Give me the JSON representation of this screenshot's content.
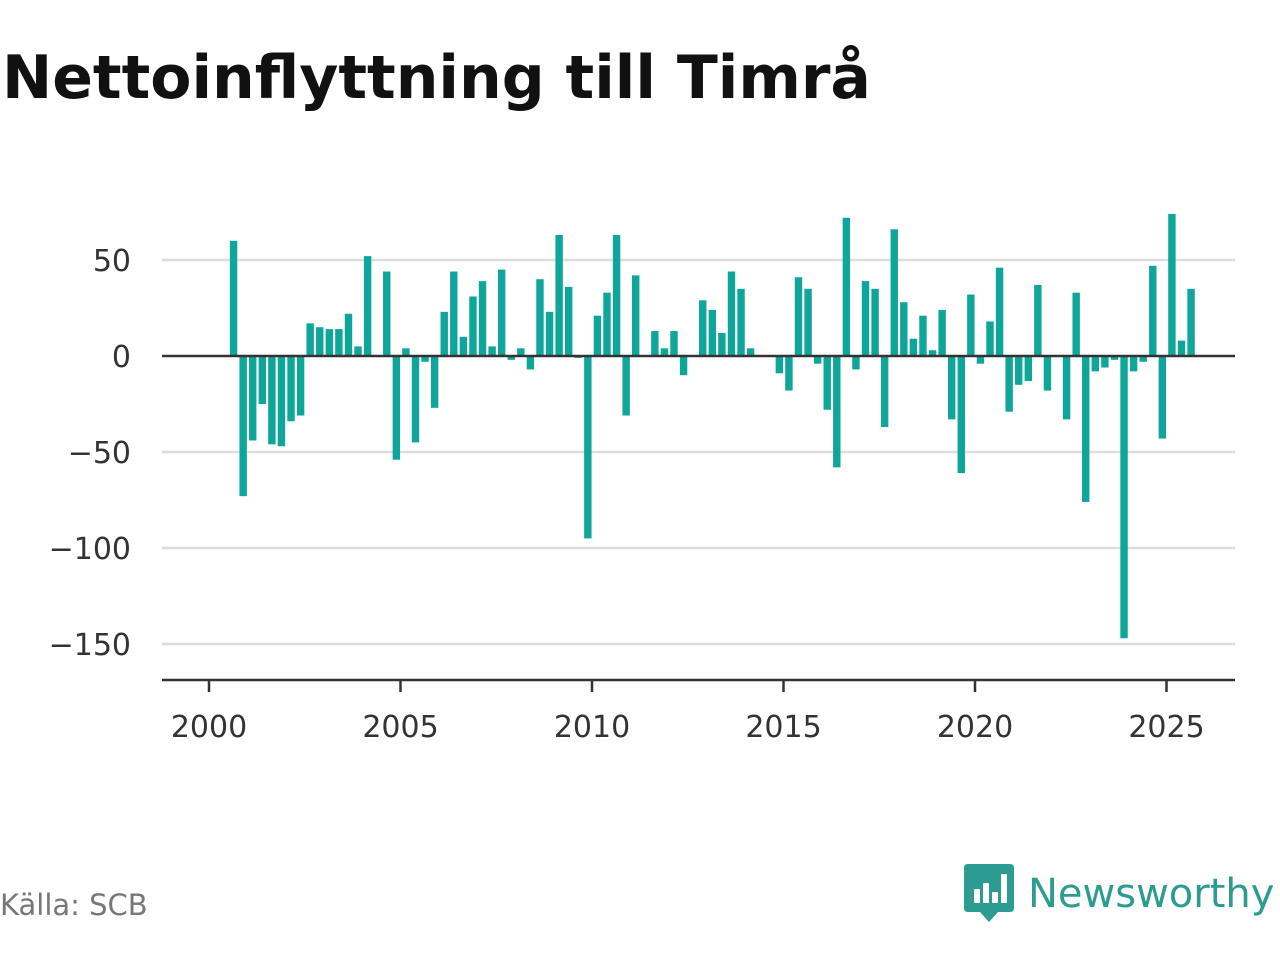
{
  "title": "Nettoinflyttning till Timrå",
  "source": "Källa: SCB",
  "brand": {
    "name": "Newsworthy",
    "icon": "newsworthy-logo-icon"
  },
  "colors": {
    "bar": "#0ea59a",
    "grid": "#dddddd",
    "axis": "#333333",
    "brand": "#2d9c90"
  },
  "chart_data": {
    "type": "bar",
    "title": "Nettoinflyttning till Timrå",
    "xlabel": "",
    "ylabel": "",
    "x_ticks": [
      "2000",
      "2005",
      "2010",
      "2015",
      "2020",
      "2025"
    ],
    "y_ticks": [
      50,
      0,
      -50,
      -100,
      -150
    ],
    "y_tick_labels": [
      "50",
      "0",
      "−50",
      "−100",
      "−150"
    ],
    "ylim": [
      -168,
      80
    ],
    "xlim": [
      1998.75,
      2026.8
    ],
    "grid": true,
    "frequency": "quarterly",
    "series": [
      {
        "start": "2000 Q1",
        "values": [
          0,
          60,
          -73,
          -44,
          -25,
          -46,
          -47,
          -34,
          -31,
          17,
          15,
          14,
          14,
          22,
          5,
          52,
          0,
          44,
          -54,
          4,
          -45,
          -3,
          -27,
          23,
          44,
          10,
          31,
          39,
          5,
          45,
          -2,
          4,
          -7,
          40,
          23,
          63,
          36,
          -1,
          -95,
          21,
          33,
          63,
          -31,
          42,
          0,
          13,
          4,
          13,
          -10,
          0,
          29,
          24,
          12,
          44,
          35,
          4,
          0,
          0,
          -9,
          -18,
          41,
          35,
          -4,
          -28,
          -58,
          72,
          -7,
          39,
          35,
          -37,
          66,
          28,
          9,
          21,
          3,
          24,
          -33,
          -61,
          32,
          -4,
          18,
          46,
          -29,
          -15,
          -13,
          37,
          -18,
          0,
          -33,
          33,
          -76,
          -8,
          -6,
          -2,
          -147,
          -8,
          -3,
          47,
          -43,
          74,
          8,
          35
        ]
      }
    ]
  }
}
